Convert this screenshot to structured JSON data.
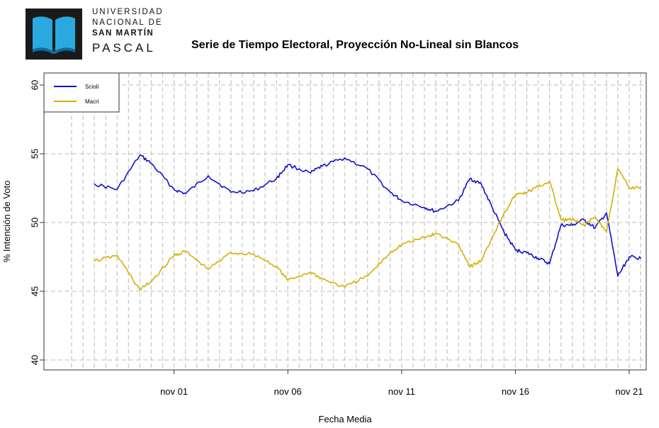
{
  "logo": {
    "line1": "UNIVERSIDAD",
    "line2": "NACIONAL DE",
    "line3": "SAN MARTÍN",
    "line4": "PASCAL"
  },
  "colors": {
    "scioli": "#1010cc",
    "macri": "#d4b000",
    "grid": "#c8c8c8",
    "book": "#29a9e0"
  },
  "chart_data": {
    "type": "line",
    "title": "Serie de Tiempo Electoral, Proyección No-Lineal sin Blancos",
    "xlabel": "Fecha Media",
    "ylabel": "% Intención de Voto",
    "ylim": [
      40,
      60
    ],
    "xlim": [
      "2015-10-27",
      "2015-11-21"
    ],
    "yticks": [
      40,
      45,
      50,
      55,
      60
    ],
    "xticks": [
      "nov 01",
      "nov 06",
      "nov 11",
      "nov 16",
      "nov 21"
    ],
    "xtick_dates": [
      "2015-11-01",
      "2015-11-06",
      "2015-11-11",
      "2015-11-16",
      "2015-11-21"
    ],
    "grid": true,
    "legend_position": "top-left",
    "series": [
      {
        "name": "Scioli",
        "color": "#1010cc",
        "x": [
          "2015-10-28 12:00",
          "2015-10-29 12:00",
          "2015-10-30 12:00",
          "2015-10-31 00:00",
          "2015-11-01 00:00",
          "2015-11-01 12:00",
          "2015-11-02 12:00",
          "2015-11-03 12:00",
          "2015-11-04 12:00",
          "2015-11-05 12:00",
          "2015-11-06 00:00",
          "2015-11-07 00:00",
          "2015-11-07 12:00",
          "2015-11-08 12:00",
          "2015-11-09 12:00",
          "2015-11-10 12:00",
          "2015-11-11 00:00",
          "2015-11-12 00:00",
          "2015-11-12 12:00",
          "2015-11-13 12:00",
          "2015-11-14 00:00",
          "2015-11-14 12:00",
          "2015-11-15 00:00",
          "2015-11-15 12:00",
          "2015-11-16 00:00",
          "2015-11-16 12:00",
          "2015-11-17 00:00",
          "2015-11-17 12:00",
          "2015-11-18 00:00",
          "2015-11-18 12:00",
          "2015-11-19 00:00",
          "2015-11-19 12:00",
          "2015-11-20 00:00",
          "2015-11-20 12:00",
          "2015-11-21 00:00",
          "2015-11-21 12:00"
        ],
        "y": [
          52.8,
          52.4,
          54.9,
          54.3,
          52.4,
          52.1,
          53.4,
          52.2,
          52.3,
          53.2,
          54.2,
          53.6,
          54.1,
          54.7,
          53.9,
          52.2,
          51.6,
          51.1,
          50.8,
          51.6,
          53.2,
          52.8,
          51.0,
          49.3,
          48.0,
          47.8,
          47.4,
          47.0,
          49.8,
          49.8,
          50.2,
          49.6,
          50.7,
          46.1,
          47.5,
          47.4
        ]
      },
      {
        "name": "Macri",
        "color": "#d4b000",
        "x": [
          "2015-10-28 12:00",
          "2015-10-29 12:00",
          "2015-10-30 12:00",
          "2015-10-31 00:00",
          "2015-11-01 00:00",
          "2015-11-01 12:00",
          "2015-11-02 12:00",
          "2015-11-03 12:00",
          "2015-11-04 12:00",
          "2015-11-05 12:00",
          "2015-11-06 00:00",
          "2015-11-07 00:00",
          "2015-11-07 12:00",
          "2015-11-08 12:00",
          "2015-11-09 12:00",
          "2015-11-10 12:00",
          "2015-11-11 00:00",
          "2015-11-12 00:00",
          "2015-11-12 12:00",
          "2015-11-13 12:00",
          "2015-11-14 00:00",
          "2015-11-14 12:00",
          "2015-11-15 00:00",
          "2015-11-15 12:00",
          "2015-11-16 00:00",
          "2015-11-16 12:00",
          "2015-11-17 00:00",
          "2015-11-17 12:00",
          "2015-11-18 00:00",
          "2015-11-18 12:00",
          "2015-11-19 00:00",
          "2015-11-19 12:00",
          "2015-11-20 00:00",
          "2015-11-20 12:00",
          "2015-11-21 00:00",
          "2015-11-21 12:00"
        ],
        "y": [
          47.2,
          47.6,
          45.1,
          45.7,
          47.6,
          47.9,
          46.6,
          47.8,
          47.7,
          46.8,
          45.8,
          46.4,
          45.9,
          45.3,
          46.1,
          47.8,
          48.4,
          48.9,
          49.2,
          48.4,
          46.8,
          47.2,
          49.0,
          50.7,
          52.0,
          52.2,
          52.6,
          53.0,
          50.2,
          50.2,
          49.8,
          50.4,
          49.3,
          53.9,
          52.5,
          52.6
        ]
      }
    ]
  }
}
